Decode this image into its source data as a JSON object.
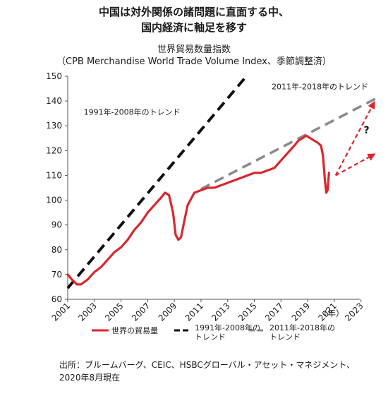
{
  "title": {
    "line1": "中国は対外関係の諸問題に直面する中、",
    "line2": "国内経済に軸足を移す"
  },
  "subtitle": {
    "line1": "世界貿易数量指数",
    "line2": "（CPB Merchandise World Trade Volume Index、季節調整済）"
  },
  "chart_data": {
    "type": "line",
    "y_ticks": [
      "60",
      "70",
      "80",
      "90",
      "100",
      "110",
      "120",
      "130",
      "140",
      "150"
    ],
    "x_ticks": [
      "2001",
      "2003",
      "2005",
      "2007",
      "2009",
      "2011",
      "2013",
      "2015",
      "2017",
      "2019",
      "2021",
      "2023"
    ],
    "x_unit": "（年）",
    "xlim": [
      2001,
      2024.5
    ],
    "ylim": [
      60,
      150
    ],
    "grid": false,
    "legend_position": "bottom",
    "series": [
      {
        "name": "世界の貿易量",
        "color": "#d9272e",
        "style": "solid",
        "points": [
          [
            2001.0,
            70
          ],
          [
            2001.3,
            68
          ],
          [
            2001.7,
            66
          ],
          [
            2002.0,
            66
          ],
          [
            2002.5,
            68
          ],
          [
            2003.0,
            71
          ],
          [
            2003.5,
            73
          ],
          [
            2004.0,
            76
          ],
          [
            2004.5,
            79
          ],
          [
            2005.0,
            81
          ],
          [
            2005.5,
            84
          ],
          [
            2006.0,
            88
          ],
          [
            2006.5,
            91
          ],
          [
            2007.0,
            95
          ],
          [
            2007.5,
            98
          ],
          [
            2008.0,
            101
          ],
          [
            2008.3,
            103
          ],
          [
            2008.6,
            102
          ],
          [
            2008.9,
            95
          ],
          [
            2009.1,
            86
          ],
          [
            2009.3,
            84
          ],
          [
            2009.5,
            85
          ],
          [
            2009.8,
            93
          ],
          [
            2010.0,
            98
          ],
          [
            2010.5,
            103
          ],
          [
            2011.0,
            104
          ],
          [
            2011.5,
            105
          ],
          [
            2012.0,
            105
          ],
          [
            2012.5,
            106
          ],
          [
            2013.0,
            107
          ],
          [
            2013.5,
            108
          ],
          [
            2014.0,
            109
          ],
          [
            2014.5,
            110
          ],
          [
            2015.0,
            111
          ],
          [
            2015.5,
            111
          ],
          [
            2016.0,
            112
          ],
          [
            2016.5,
            113
          ],
          [
            2017.0,
            116
          ],
          [
            2017.5,
            119
          ],
          [
            2018.0,
            122
          ],
          [
            2018.3,
            124
          ],
          [
            2018.6,
            125
          ],
          [
            2018.9,
            126
          ],
          [
            2019.2,
            125
          ],
          [
            2019.5,
            124
          ],
          [
            2019.8,
            123
          ],
          [
            2020.0,
            122
          ],
          [
            2020.15,
            118
          ],
          [
            2020.3,
            108
          ],
          [
            2020.4,
            103
          ],
          [
            2020.5,
            104
          ],
          [
            2020.6,
            111
          ]
        ]
      },
      {
        "name": "1991年-2008年のトレンド",
        "color": "#111111",
        "style": "dashed",
        "points": [
          [
            2001.0,
            64.5
          ],
          [
            2014.4,
            150
          ]
        ]
      },
      {
        "name": "2011年-2018年のトレンド",
        "color": "#8a8a8a",
        "style": "dashed",
        "points": [
          [
            2011.0,
            104.5
          ],
          [
            2024.3,
            141.5
          ]
        ]
      }
    ],
    "scenario_arrows": {
      "color": "#d9272e",
      "lines": [
        [
          [
            2021.1,
            110
          ],
          [
            2024.0,
            139.5
          ]
        ],
        [
          [
            2021.1,
            110
          ],
          [
            2024.0,
            118.5
          ]
        ]
      ],
      "label": "?",
      "label_at": [
        2023.2,
        127
      ]
    },
    "annotations": [
      {
        "text": "1991年-2008年のトレンド",
        "at": [
          2002.2,
          134.5
        ]
      },
      {
        "text": "2011年-2018年のトレンド",
        "at": [
          2016.3,
          144.8
        ]
      }
    ],
    "legend": [
      {
        "label": "世界の貿易量",
        "color": "#d9272e",
        "style": "solid"
      },
      {
        "label_lines": [
          "1991年-2008年の",
          "トレンド"
        ],
        "color": "#111111",
        "style": "dashed"
      },
      {
        "label_lines": [
          "2011年-2018年の",
          "トレンド"
        ],
        "color": "#8a8a8a",
        "style": "dashed"
      }
    ]
  },
  "source": "出所：ブルームバーグ、CEIC、HSBCグローバル・アセット・マネジメント、2020年8月現在"
}
